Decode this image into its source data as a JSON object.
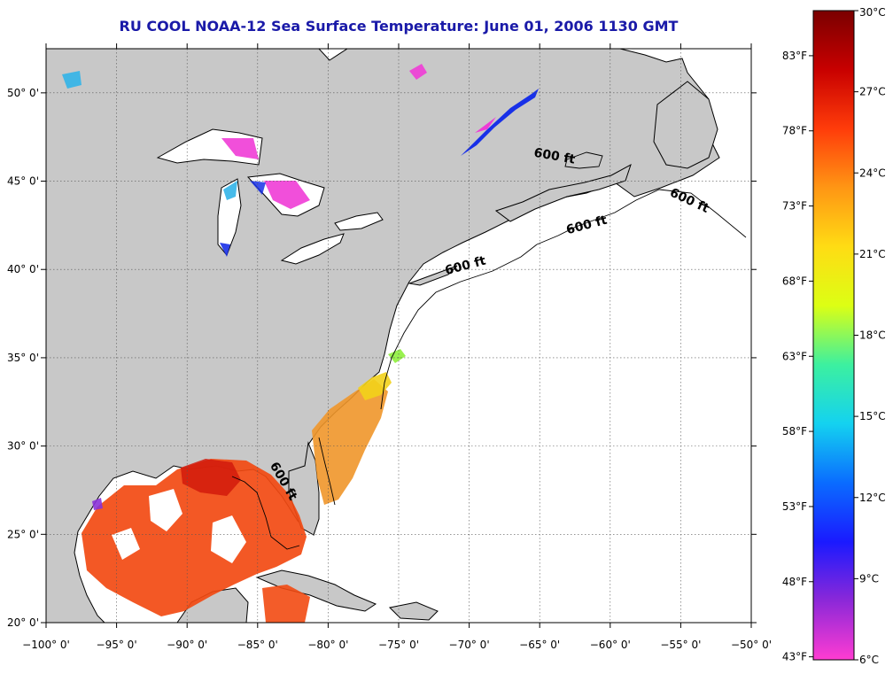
{
  "title": "RU COOL  NOAA-12  Sea Surface Temperature:  June 01, 2006 1130 GMT",
  "map": {
    "lat_range": [
      20,
      52.5
    ],
    "lon_range": [
      -100,
      -50
    ],
    "lat_ticks": [
      {
        "value": 50,
        "label": "50° 0'"
      },
      {
        "value": 45,
        "label": "45° 0'"
      },
      {
        "value": 40,
        "label": "40° 0'"
      },
      {
        "value": 35,
        "label": "35° 0'"
      },
      {
        "value": 30,
        "label": "30° 0'"
      },
      {
        "value": 25,
        "label": "25° 0'"
      },
      {
        "value": 20,
        "label": "20° 0'"
      }
    ],
    "lon_ticks": [
      {
        "value": -100,
        "label": "−100° 0'"
      },
      {
        "value": -95,
        "label": "−95° 0'"
      },
      {
        "value": -90,
        "label": "−90° 0'"
      },
      {
        "value": -85,
        "label": "−85° 0'"
      },
      {
        "value": -80,
        "label": "−80° 0'"
      },
      {
        "value": -75,
        "label": "−75° 0'"
      },
      {
        "value": -70,
        "label": "−70° 0'"
      },
      {
        "value": -65,
        "label": "−65° 0'"
      },
      {
        "value": -60,
        "label": "−60° 0'"
      },
      {
        "value": -55,
        "label": "−55° 0'"
      },
      {
        "value": -50,
        "label": "−50° 0'"
      }
    ],
    "depth_labels": [
      {
        "text": "600 ft",
        "lon": -64,
        "lat": 46.2,
        "rotate": 10
      },
      {
        "text": "600 ft",
        "lon": -54.5,
        "lat": 43.7,
        "rotate": 25
      },
      {
        "text": "600 ft",
        "lon": -61.6,
        "lat": 42.3,
        "rotate": -15
      },
      {
        "text": "600 ft",
        "lon": -70.2,
        "lat": 40.0,
        "rotate": -15
      },
      {
        "text": "600 ft",
        "lon": -83.4,
        "lat": 27.9,
        "rotate": 60
      }
    ],
    "colors": {
      "land": "#c8c8c8",
      "ocean": "#ffffff",
      "coast": "#000000",
      "warm": "#f24a12",
      "hot": "#d11a0c",
      "mid": "#f0962a",
      "yellow": "#f2d21a",
      "green": "#8ef03c",
      "cold": "#1830e8",
      "cool": "#32b4e8",
      "magenta": "#ef3cd6",
      "purple": "#8a32d8"
    }
  },
  "colorbar": {
    "celsius_ticks": [
      {
        "value": 30,
        "label": "30°C"
      },
      {
        "value": 27,
        "label": "27°C"
      },
      {
        "value": 24,
        "label": "24°C"
      },
      {
        "value": 21,
        "label": "21°C"
      },
      {
        "value": 18,
        "label": "18°C"
      },
      {
        "value": 15,
        "label": "15°C"
      },
      {
        "value": 12,
        "label": "12°C"
      },
      {
        "value": 9,
        "label": "9°C"
      },
      {
        "value": 6,
        "label": "6°C"
      }
    ],
    "fahrenheit_ticks": [
      {
        "value": 83,
        "label": "83°F"
      },
      {
        "value": 78,
        "label": "78°F"
      },
      {
        "value": 73,
        "label": "73°F"
      },
      {
        "value": 68,
        "label": "68°F"
      },
      {
        "value": 63,
        "label": "63°F"
      },
      {
        "value": 58,
        "label": "58°F"
      },
      {
        "value": 53,
        "label": "53°F"
      },
      {
        "value": 48,
        "label": "48°F"
      },
      {
        "value": 43,
        "label": "43°F"
      }
    ],
    "range_c": [
      6,
      30
    ],
    "stops": [
      "#ff3cd2",
      "#8c28d8",
      "#1a1aff",
      "#0a6cff",
      "#14d2f0",
      "#3cf0a0",
      "#dcff14",
      "#ffdc14",
      "#ff9614",
      "#ff3c0a",
      "#c80000",
      "#7a0000"
    ]
  }
}
